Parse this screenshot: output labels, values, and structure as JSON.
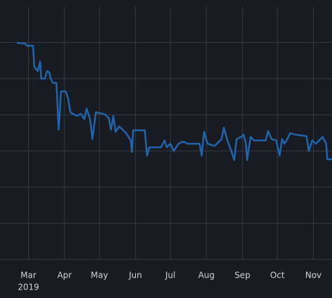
{
  "chart_data": {
    "type": "line",
    "color": "#1f64ad",
    "grid": true,
    "x": [
      "2019-02-19",
      "2019-02-26",
      "2019-02-28",
      "2019-03-05",
      "2019-03-06",
      "2019-03-09",
      "2019-03-11",
      "2019-03-12",
      "2019-03-15",
      "2019-03-17",
      "2019-03-19",
      "2019-03-20",
      "2019-03-22",
      "2019-03-25",
      "2019-03-27",
      "2019-03-29",
      "2019-04-02",
      "2019-04-04",
      "2019-04-06",
      "2019-04-09",
      "2019-04-12",
      "2019-04-15",
      "2019-04-18",
      "2019-04-20",
      "2019-04-23",
      "2019-04-25",
      "2019-04-28",
      "2019-05-06",
      "2019-05-09",
      "2019-05-11",
      "2019-05-13",
      "2019-05-15",
      "2019-05-18",
      "2019-05-21",
      "2019-05-24",
      "2019-05-28",
      "2019-05-29",
      "2019-05-30",
      "2019-06-09",
      "2019-06-11",
      "2019-06-13",
      "2019-06-23",
      "2019-06-26",
      "2019-06-28",
      "2019-07-01",
      "2019-07-04",
      "2019-07-08",
      "2019-07-12",
      "2019-07-16",
      "2019-07-26",
      "2019-07-28",
      "2019-07-30",
      "2019-08-02",
      "2019-08-08",
      "2019-08-14",
      "2019-08-16",
      "2019-08-19",
      "2019-08-22",
      "2019-08-25",
      "2019-08-27",
      "2019-08-31",
      "2019-09-02",
      "2019-09-04",
      "2019-09-05",
      "2019-09-08",
      "2019-09-11",
      "2019-09-21",
      "2019-09-23",
      "2019-09-26",
      "2019-09-30",
      "2019-10-03",
      "2019-10-05",
      "2019-10-07",
      "2019-10-09",
      "2019-10-12",
      "2019-10-17",
      "2019-10-26",
      "2019-10-28",
      "2019-10-31",
      "2019-11-03",
      "2019-11-06",
      "2019-11-09",
      "2019-11-12",
      "2019-11-13",
      "2019-11-17"
    ],
    "values": [
      5.99,
      5.97,
      5.91,
      5.91,
      5.33,
      5.21,
      5.47,
      5.0,
      5.0,
      5.21,
      5.17,
      5.0,
      4.88,
      4.88,
      3.59,
      4.65,
      4.65,
      4.46,
      4.07,
      4.01,
      3.97,
      4.03,
      3.88,
      4.17,
      3.88,
      3.33,
      4.07,
      4.01,
      3.91,
      3.59,
      3.97,
      3.53,
      3.68,
      3.59,
      3.49,
      3.29,
      2.97,
      3.57,
      3.57,
      2.87,
      3.1,
      3.1,
      3.29,
      3.1,
      3.2,
      3.0,
      3.2,
      3.26,
      3.2,
      3.2,
      2.87,
      3.53,
      3.2,
      3.14,
      3.33,
      3.64,
      3.29,
      3.04,
      2.75,
      3.33,
      3.39,
      3.45,
      3.2,
      2.75,
      3.39,
      3.29,
      3.29,
      3.55,
      3.33,
      3.29,
      2.87,
      3.33,
      3.2,
      3.29,
      3.49,
      3.45,
      3.41,
      3.0,
      3.29,
      3.2,
      3.29,
      3.39,
      3.2,
      2.77,
      2.77
    ],
    "xlim": [
      "2019-02-19",
      "2019-11-17"
    ],
    "xticks": [
      {
        "value": "2019-03-01",
        "label": "Mar"
      },
      {
        "value": "2019-04-01",
        "label": "Apr"
      },
      {
        "value": "2019-05-01",
        "label": "May"
      },
      {
        "value": "2019-06-01",
        "label": "Jun"
      },
      {
        "value": "2019-07-01",
        "label": "Jul"
      },
      {
        "value": "2019-08-01",
        "label": "Aug"
      },
      {
        "value": "2019-09-01",
        "label": "Sep"
      },
      {
        "value": "2019-10-01",
        "label": "Oct"
      },
      {
        "value": "2019-11-01",
        "label": "Nov"
      }
    ],
    "x_year_label": "2019",
    "ylim": [
      0,
      7
    ],
    "yticks": [
      0,
      1,
      2,
      3,
      4,
      5,
      6
    ]
  }
}
